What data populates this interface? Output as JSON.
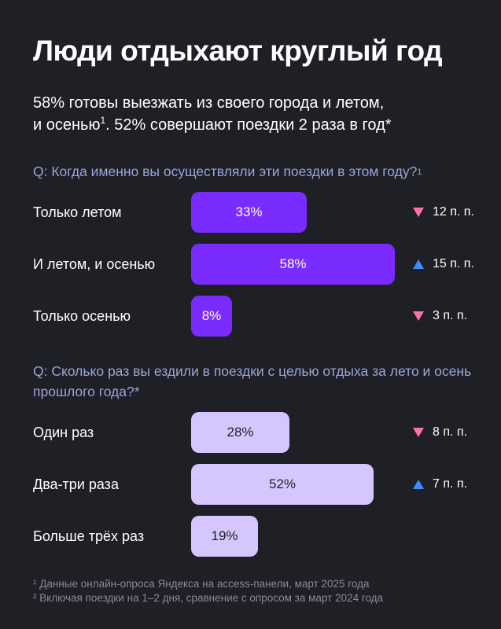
{
  "title": "Люди отдыхают круглый год",
  "subtitle": {
    "line1": "58% готовы выезжать из своего города и летом,",
    "line2_pre": "и осенью",
    "line2_sup": "1",
    "line2_post": ". 52% совершают поездки 2 раза в год*"
  },
  "colors": {
    "background": "#1f1f26",
    "bar_dark": "#7a2cff",
    "bar_light": "#d6c6ff",
    "down": "#ff6fb0",
    "up": "#3d8bff",
    "question": "#9aa4d8"
  },
  "chart_data": [
    {
      "type": "bar",
      "orientation": "horizontal",
      "question": "Q: Когда именно вы осуществляли эти поездки в этом году?",
      "question_sup": "1",
      "categories": [
        "Только летом",
        "И летом, и осенью",
        "Только осенью"
      ],
      "values": [
        33,
        58,
        8
      ],
      "value_labels": [
        "33%",
        "58%",
        "8%"
      ],
      "changes": [
        {
          "direction": "down",
          "text": "12 п. п."
        },
        {
          "direction": "up",
          "text": "15 п. п."
        },
        {
          "direction": "down",
          "text": "3 п. п."
        }
      ]
    },
    {
      "type": "bar",
      "orientation": "horizontal",
      "question": "Q: Сколько раз вы ездили в поездки с целью отдыха за лето и осень прошлого года?*",
      "question_sup": "",
      "categories": [
        "Один раз",
        "Два-три раза",
        "Больше трёх раз"
      ],
      "values": [
        28,
        52,
        19
      ],
      "value_labels": [
        "28%",
        "52%",
        "19%"
      ],
      "changes": [
        {
          "direction": "down",
          "text": "8 п. п."
        },
        {
          "direction": "up",
          "text": "7 п. п."
        },
        null
      ]
    }
  ],
  "footnotes": [
    "¹ Данные онлайн-опроса Яндекса на access-панели, март 2025 года",
    "² Включая поездки на 1–2 дня, сравнение с опросом за март 2024 года"
  ]
}
